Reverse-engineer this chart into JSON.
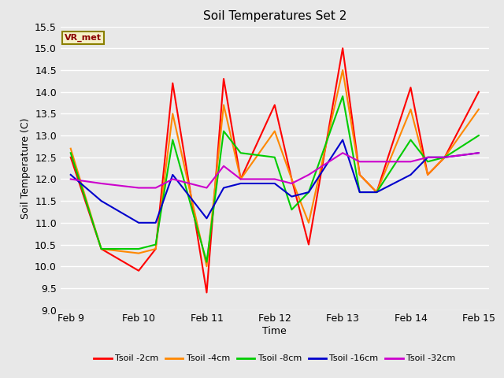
{
  "title": "Soil Temperatures Set 2",
  "xlabel": "Time",
  "ylabel": "Soil Temperature (C)",
  "ylim": [
    9.0,
    15.5
  ],
  "yticks": [
    9.0,
    9.5,
    10.0,
    10.5,
    11.0,
    11.5,
    12.0,
    12.5,
    13.0,
    13.5,
    14.0,
    14.5,
    15.0,
    15.5
  ],
  "fig_bg_color": "#e8e8e8",
  "plot_bg_color": "#e8e8e8",
  "grid_color": "#ffffff",
  "legend_label": "VR_met",
  "series": {
    "Tsoil -2cm": {
      "color": "#ff0000",
      "x": [
        0,
        0.45,
        1.0,
        1.25,
        1.5,
        2.0,
        2.25,
        2.5,
        3.0,
        3.25,
        3.5,
        4.0,
        4.25,
        4.5,
        5.0,
        5.25,
        5.5,
        6.0
      ],
      "y": [
        12.5,
        10.4,
        9.9,
        10.4,
        14.2,
        9.4,
        14.3,
        12.0,
        13.7,
        12.0,
        10.5,
        15.0,
        12.1,
        11.7,
        14.1,
        12.1,
        12.5,
        14.0
      ]
    },
    "Tsoil -4cm": {
      "color": "#ff8800",
      "x": [
        0,
        0.45,
        1.0,
        1.25,
        1.5,
        2.0,
        2.25,
        2.5,
        3.0,
        3.25,
        3.5,
        4.0,
        4.25,
        4.5,
        5.0,
        5.25,
        5.5,
        6.0
      ],
      "y": [
        12.7,
        10.4,
        10.3,
        10.4,
        13.5,
        10.0,
        13.7,
        12.0,
        13.1,
        12.0,
        11.0,
        14.5,
        12.1,
        11.7,
        13.6,
        12.1,
        12.5,
        13.6
      ]
    },
    "Tsoil -8cm": {
      "color": "#00cc00",
      "x": [
        0,
        0.45,
        1.0,
        1.25,
        1.5,
        2.0,
        2.25,
        2.5,
        3.0,
        3.25,
        3.5,
        4.0,
        4.25,
        4.5,
        5.0,
        5.25,
        5.5,
        6.0
      ],
      "y": [
        12.6,
        10.4,
        10.4,
        10.5,
        12.9,
        10.1,
        13.1,
        12.6,
        12.5,
        11.3,
        11.7,
        13.9,
        11.7,
        11.7,
        12.9,
        12.4,
        12.5,
        13.0
      ]
    },
    "Tsoil -16cm": {
      "color": "#0000cc",
      "x": [
        0,
        0.45,
        1.0,
        1.25,
        1.5,
        2.0,
        2.25,
        2.5,
        3.0,
        3.25,
        3.5,
        4.0,
        4.25,
        4.5,
        5.0,
        5.25,
        5.5,
        6.0
      ],
      "y": [
        12.1,
        11.5,
        11.0,
        11.0,
        12.1,
        11.1,
        11.8,
        11.9,
        11.9,
        11.6,
        11.7,
        12.9,
        11.7,
        11.7,
        12.1,
        12.5,
        12.5,
        12.6
      ]
    },
    "Tsoil -32cm": {
      "color": "#cc00cc",
      "x": [
        0,
        0.45,
        1.0,
        1.25,
        1.5,
        2.0,
        2.25,
        2.5,
        3.0,
        3.25,
        3.5,
        4.0,
        4.25,
        4.5,
        5.0,
        5.25,
        5.5,
        6.0
      ],
      "y": [
        12.0,
        11.9,
        11.8,
        11.8,
        12.0,
        11.8,
        12.3,
        12.0,
        12.0,
        11.9,
        12.1,
        12.6,
        12.4,
        12.4,
        12.4,
        12.5,
        12.5,
        12.6
      ]
    }
  },
  "xtick_positions": [
    0,
    1,
    2,
    3,
    4,
    5,
    6
  ],
  "xtick_labels": [
    "Feb 9",
    "Feb 10",
    "Feb 11",
    "Feb 12",
    "Feb 13",
    "Feb 14",
    "Feb 15"
  ]
}
